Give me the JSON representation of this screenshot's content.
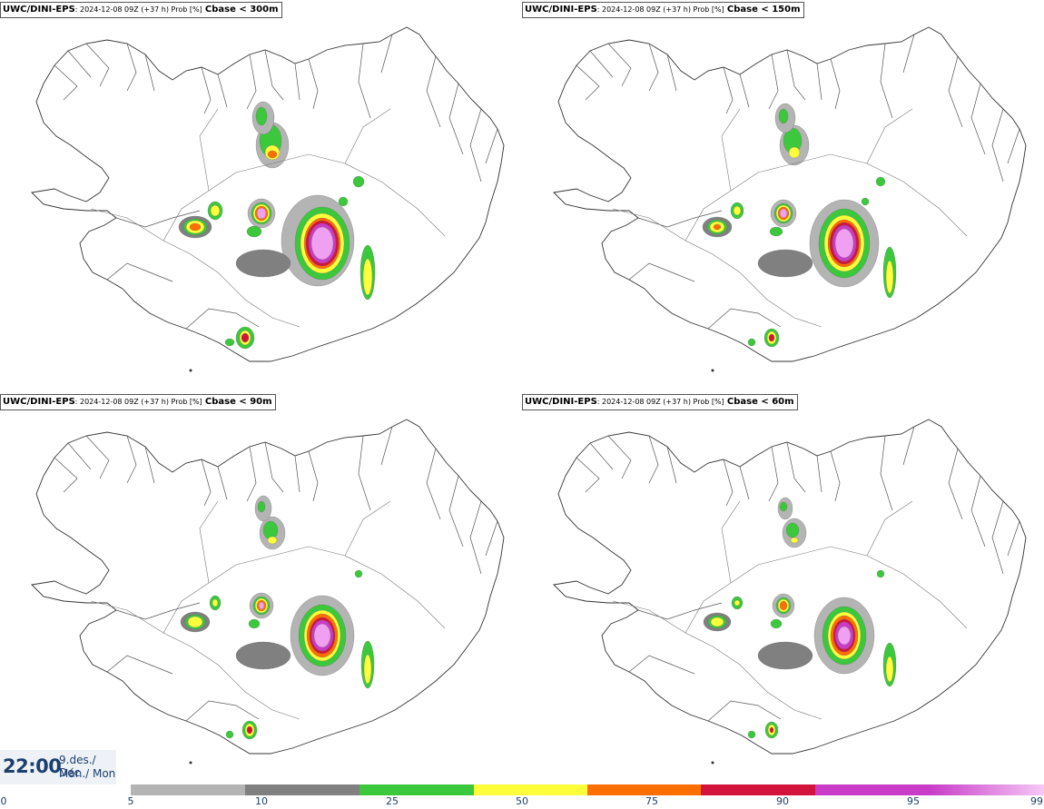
{
  "panels": [
    {
      "model": "UWC/DINI-EPS",
      "meta": ": 2024-12-08 09Z (+37 h) Prob [%]",
      "variable": "Cbase < 300m"
    },
    {
      "model": "UWC/DINI-EPS",
      "meta": ": 2024-12-08 09Z (+37 h) Prob [%]",
      "variable": "Cbase < 150m"
    },
    {
      "model": "UWC/DINI-EPS",
      "meta": ": 2024-12-08 09Z (+37 h) Prob [%]",
      "variable": "Cbase < 90m"
    },
    {
      "model": "UWC/DINI-EPS",
      "meta": ": 2024-12-08 09Z (+37 h) Prob [%]",
      "variable": "Cbase < 60m"
    }
  ],
  "valid_time": {
    "clock": "22:00",
    "date_line1": "9.des./ Dec",
    "date_line2": "Mán./ Mon"
  },
  "legend": {
    "ticks": [
      "0",
      "5",
      "10",
      "25",
      "50",
      "75",
      "90",
      "95",
      "99"
    ],
    "colors": [
      "#b4b4b4",
      "#808080",
      "#3cc83c",
      "#ffff3c",
      "#ff6e00",
      "#d2143c",
      "#c83cc8",
      "#f0a0f0"
    ]
  }
}
